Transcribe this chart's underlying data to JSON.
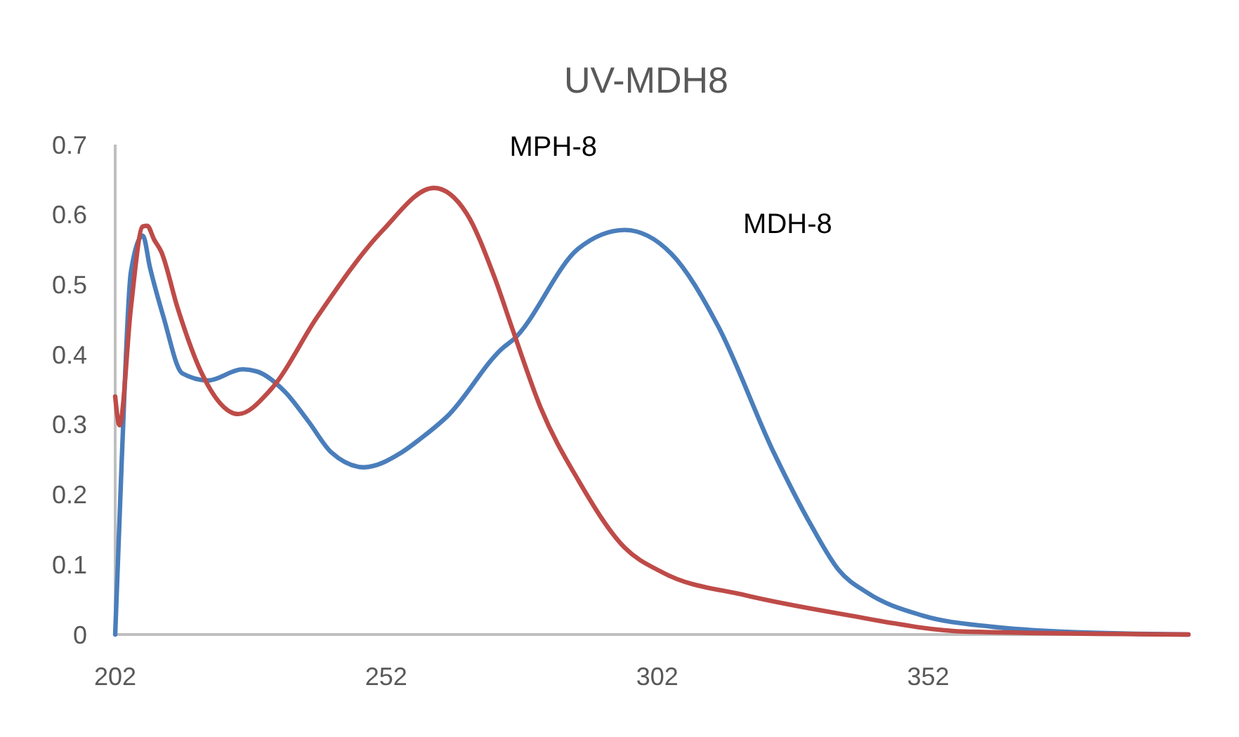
{
  "chart_data": {
    "type": "line",
    "title": "UV-MDH8",
    "xlim": [
      202,
      400
    ],
    "xticks": [
      202,
      252,
      302,
      352
    ],
    "ylim": [
      0,
      0.7
    ],
    "yticks": [
      0,
      0.1,
      0.2,
      0.3,
      0.4,
      0.5,
      0.6,
      0.7
    ],
    "grid": false,
    "legend": false,
    "series": [
      {
        "name": "MDH-8",
        "color": "#4a7ebb",
        "x": [
          202,
          203.2,
          204.9,
          207.1,
          208.4,
          210.9,
          214.4,
          219.1,
          225.5,
          228.1,
          233.3,
          237.6,
          241.9,
          247.9,
          254.8,
          258.2,
          263.3,
          273.6,
          275.4,
          287.4,
          296,
          304.6,
          313.2,
          323.5,
          330.4,
          335.5,
          340.7,
          351,
          363.9,
          376.7,
          400
        ],
        "values": [
          0.0,
          0.247,
          0.518,
          0.57,
          0.525,
          0.454,
          0.373,
          0.363,
          0.379,
          0.376,
          0.347,
          0.305,
          0.26,
          0.239,
          0.26,
          0.279,
          0.312,
          0.41,
          0.421,
          0.551,
          0.578,
          0.544,
          0.441,
          0.26,
          0.156,
          0.092,
          0.06,
          0.027,
          0.011,
          0.004,
          0.0
        ]
      },
      {
        "name": "MPH-8",
        "color": "#be4b48",
        "x": [
          202,
          202.8,
          204.9,
          207.1,
          207.9,
          209.2,
          210.5,
          213.5,
          217.8,
          224.7,
          230.7,
          239.3,
          251.3,
          260.8,
          266.8,
          271.9,
          275.4,
          280.5,
          287.4,
          296,
          302.9,
          318.3,
          335.5,
          359.5,
          400
        ],
        "values": [
          0.34,
          0.299,
          0.467,
          0.583,
          0.584,
          0.564,
          0.547,
          0.467,
          0.376,
          0.315,
          0.35,
          0.454,
          0.577,
          0.638,
          0.602,
          0.512,
          0.434,
          0.324,
          0.221,
          0.124,
          0.089,
          0.056,
          0.03,
          0.004,
          0.0
        ]
      }
    ]
  }
}
